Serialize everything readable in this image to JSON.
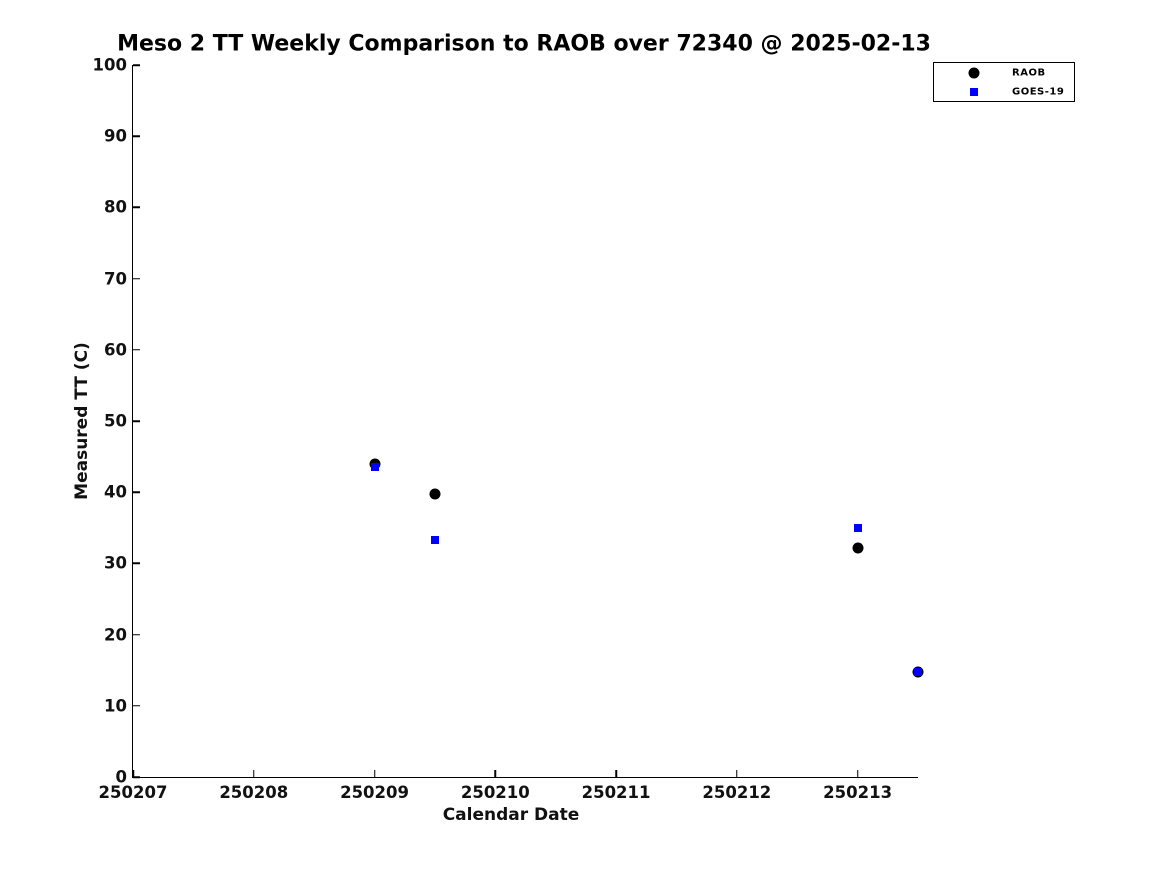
{
  "chart_data": {
    "type": "scatter",
    "title": "Meso 2 TT Weekly Comparison to RAOB over 72340 @ 2025-02-13",
    "xlabel": "Calendar Date",
    "ylabel": "Measured TT (C)",
    "xlim": [
      250207,
      250213.5
    ],
    "ylim": [
      0,
      100
    ],
    "x_ticks": [
      250207,
      250208,
      250209,
      250210,
      250211,
      250212,
      250213
    ],
    "y_ticks": [
      0,
      10,
      20,
      30,
      40,
      50,
      60,
      70,
      80,
      90,
      100
    ],
    "grid": false,
    "legend_position": "top-right",
    "background_color": "#ffffff",
    "series": [
      {
        "name": "RAOB",
        "marker": "circle",
        "color": "#000000",
        "points": [
          [
            250209.0,
            44.0
          ],
          [
            250209.5,
            39.7
          ],
          [
            250213.0,
            32.2
          ],
          [
            250213.5,
            14.7
          ]
        ]
      },
      {
        "name": "GOES-19",
        "marker": "square",
        "color": "#0000ff",
        "points": [
          [
            250209.0,
            43.6
          ],
          [
            250209.5,
            33.3
          ],
          [
            250213.0,
            35.0
          ],
          [
            250213.5,
            14.8
          ]
        ]
      }
    ]
  }
}
